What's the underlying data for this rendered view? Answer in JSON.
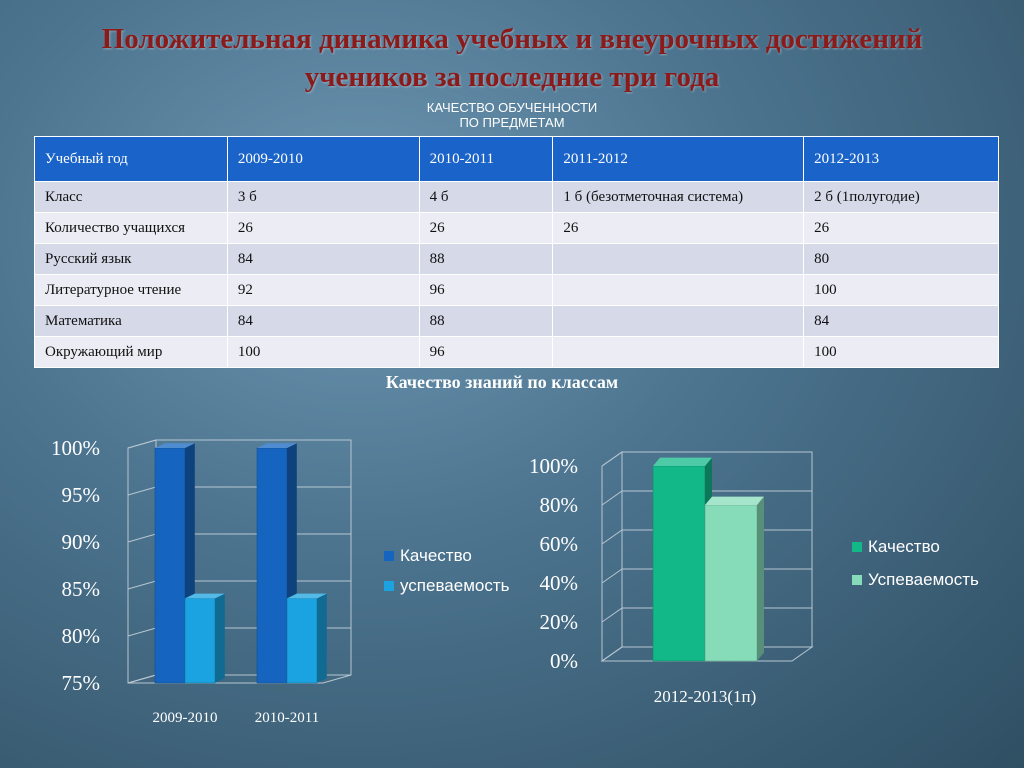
{
  "header": {
    "title_line1": "Положительная  динамика учебных  и внеурочных достижений",
    "title_line2": "учеников за последние три года",
    "subtitle_line1": "КАЧЕСТВО ОБУЧЕННОСТИ",
    "subtitle_line2": "ПО ПРЕДМЕТАМ",
    "section_title": "Качество знаний по классам"
  },
  "table": {
    "headers": [
      "Учебный год",
      "2009-2010",
      "2010-2011",
      "2011-2012",
      "2012-2013"
    ],
    "rows": [
      [
        "Класс",
        "3 б",
        "4 б",
        "1 б (безотметочная система)",
        "2 б (1полугодие)"
      ],
      [
        "Количество учащихся",
        "26",
        "26",
        "26",
        "26"
      ],
      [
        "Русский язык",
        "84",
        "88",
        "",
        "80"
      ],
      [
        "Литературное чтение",
        "92",
        "96",
        "",
        "100"
      ],
      [
        "Математика",
        "84",
        "88",
        "",
        "84"
      ],
      [
        "Окружающий мир",
        "100",
        "96",
        "",
        "100"
      ]
    ]
  },
  "chart_data": [
    {
      "type": "bar",
      "categories": [
        "2009-2010",
        "2010-2011"
      ],
      "series": [
        {
          "name": "Качество",
          "values": [
            100,
            100
          ],
          "color": "#1565c0"
        },
        {
          "name": "успеваемость",
          "values": [
            84,
            84
          ],
          "color": "#1aa3e0"
        }
      ],
      "ylim": [
        75,
        100
      ],
      "yticks": [
        "75%",
        "80%",
        "85%",
        "90%",
        "95%",
        "100%"
      ],
      "legend": "right",
      "grid": true
    },
    {
      "type": "bar",
      "categories": [
        "2012-2013(1п)"
      ],
      "series": [
        {
          "name": "Качество",
          "values": [
            100
          ],
          "color": "#13b889"
        },
        {
          "name": "Успеваемость",
          "values": [
            80
          ],
          "color": "#86dcb9"
        }
      ],
      "ylim": [
        0,
        100
      ],
      "yticks": [
        "0%",
        "20%",
        "40%",
        "60%",
        "80%",
        "100%"
      ],
      "legend": "right",
      "grid": true
    }
  ]
}
